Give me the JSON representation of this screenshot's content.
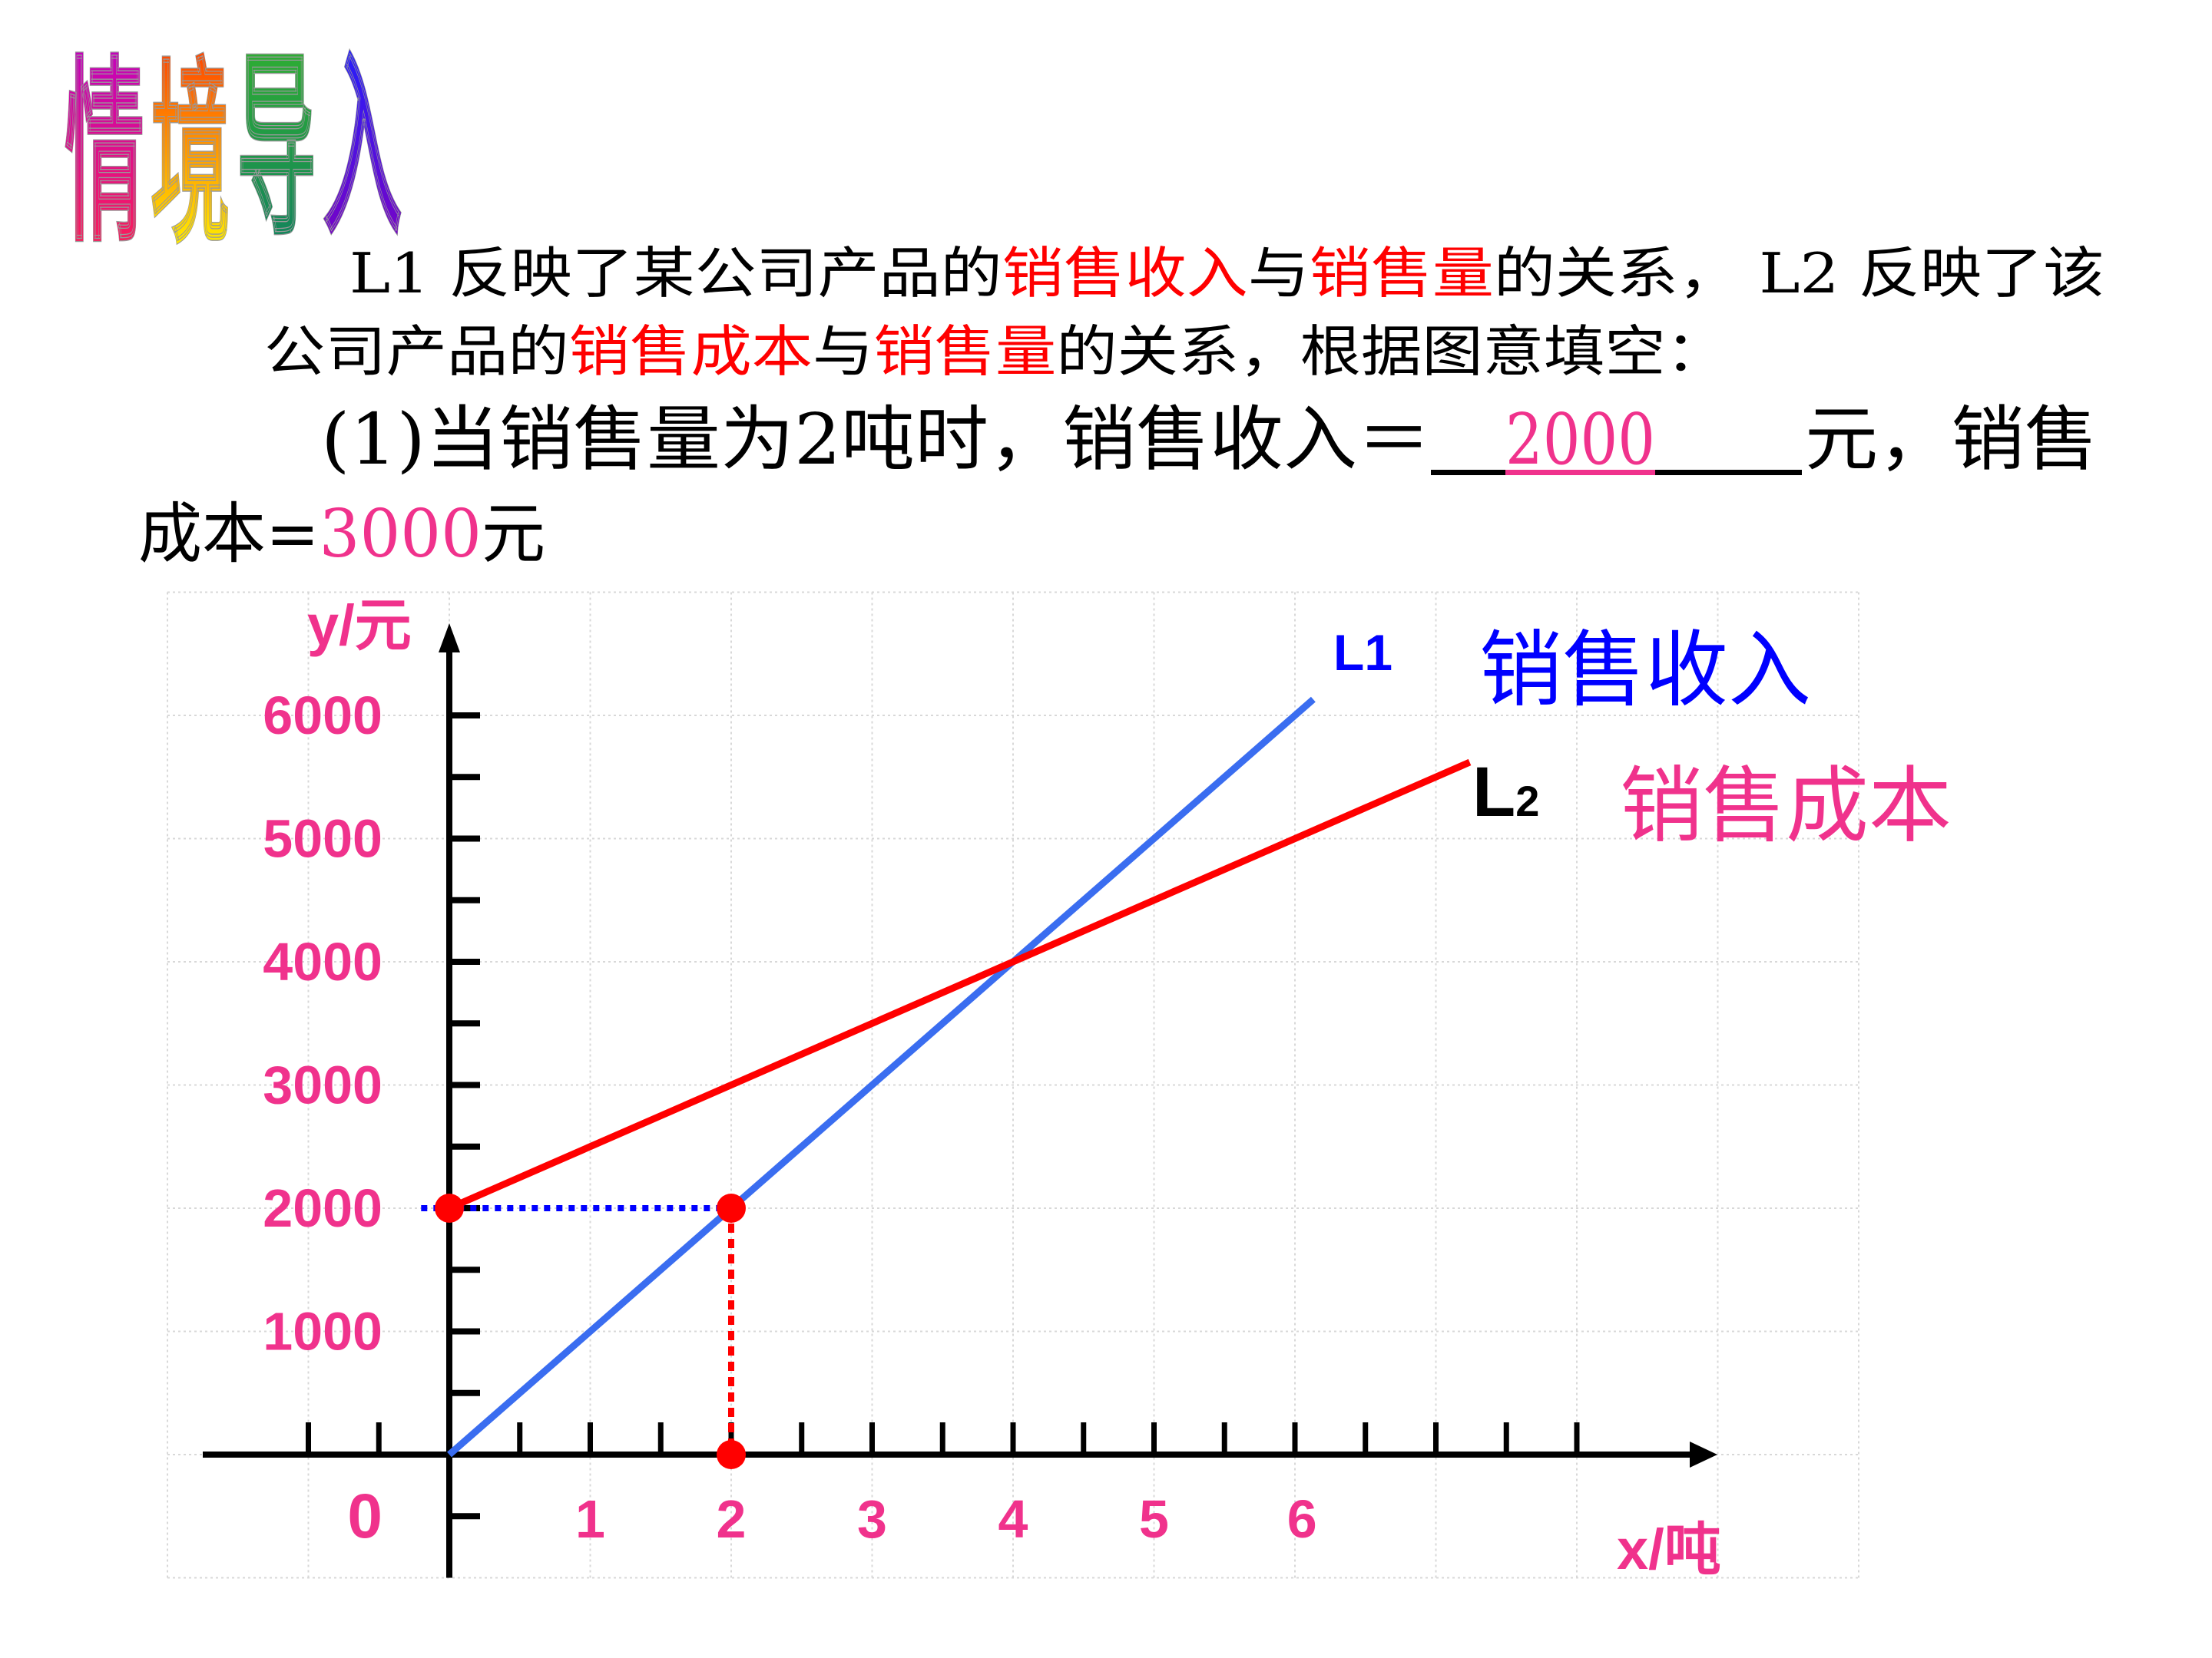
{
  "title": {
    "chars": [
      "情",
      "境",
      "导",
      "入"
    ]
  },
  "problem": {
    "line1": {
      "a": "L1 反映了某公司产品的",
      "b": "销售收入",
      "c": "与",
      "d": "销售量",
      "e": "的关系，  L2 反映了该"
    },
    "line2": {
      "a": "公司产品的",
      "b": "销售成本",
      "c": "与",
      "d": "销售量",
      "e": "的关系，根据图意填空："
    },
    "line3": {
      "a": "(1)当销售量为2吨时，销售收入＝",
      "answer": "2000",
      "b": "元，销售"
    },
    "line4": {
      "a": "成本=",
      "answer": "3000",
      "b": "元"
    }
  },
  "colors": {
    "accent_red": "#ff0000",
    "pink": "#f0328c",
    "blue_line": "#3a6df0",
    "blue_text": "#0000ff"
  },
  "chart_data": {
    "type": "line",
    "xlabel": "x/吨",
    "ylabel": "y/元",
    "origin_label": "0",
    "x_ticks": [
      "1",
      "2",
      "3",
      "4",
      "5",
      "6"
    ],
    "x_tick_values": [
      1,
      2,
      3,
      4,
      5,
      6.05
    ],
    "y_ticks": [
      "1000",
      "2000",
      "3000",
      "4000",
      "5000",
      "6000"
    ],
    "y_tick_values": [
      1000,
      2000,
      3000,
      4000,
      5000,
      6000
    ],
    "xlim": [
      -2,
      10
    ],
    "ylim": [
      -1000,
      7000
    ],
    "grid": true,
    "series": [
      {
        "name": "L1",
        "legend": "销售收入",
        "points": [
          [
            0,
            0
          ],
          [
            6.13,
            6130
          ]
        ]
      },
      {
        "name": "L",
        "sub": "2",
        "legend": "销售成本",
        "points": [
          [
            0,
            2000
          ],
          [
            7.24,
            5620
          ]
        ]
      }
    ],
    "highlight_points": [
      [
        0,
        2000
      ],
      [
        2,
        2000
      ],
      [
        2,
        0
      ]
    ]
  }
}
